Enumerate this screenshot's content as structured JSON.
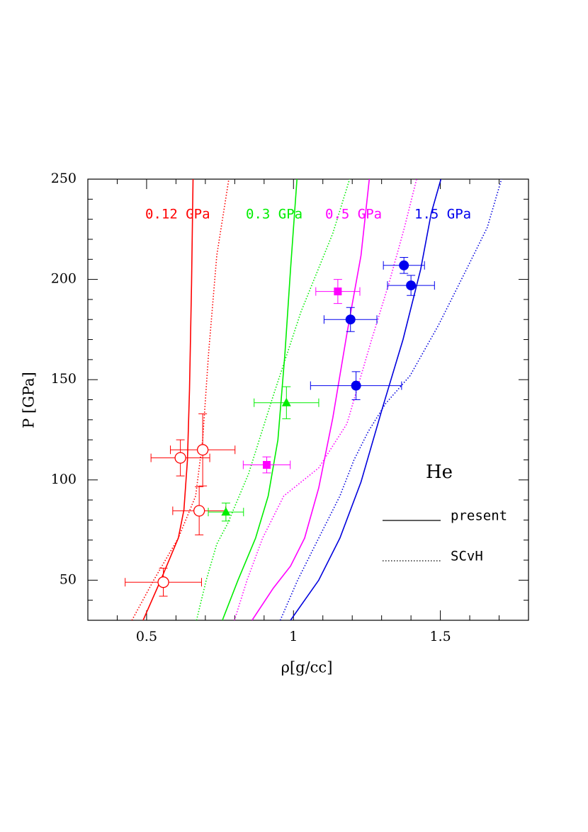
{
  "chart_data": {
    "type": "line",
    "xlabel": "ρ[g/cc]",
    "ylabel": "P [GPa]",
    "xlim": [
      0.3,
      1.8
    ],
    "ylim": [
      30,
      250
    ],
    "xticks": [
      0.5,
      1,
      1.5
    ],
    "yticks": [
      50,
      100,
      150,
      200,
      250
    ],
    "xminorticks": [
      0.4,
      0.6,
      0.7,
      0.8,
      0.9,
      1.1,
      1.2,
      1.3,
      1.4,
      1.6,
      1.7
    ],
    "yminorticks": [
      40,
      60,
      70,
      80,
      90,
      110,
      120,
      130,
      140,
      160,
      170,
      180,
      190,
      210,
      220,
      230,
      240
    ],
    "series": [
      {
        "color": "#ff0000",
        "style": "solid",
        "x": [
          0.488,
          0.548,
          0.608,
          0.627,
          0.639,
          0.646,
          0.653,
          0.658
        ],
        "values": [
          30,
          50,
          71,
          85,
          110,
          145,
          198,
          250
        ]
      },
      {
        "color": "#ff0000",
        "style": "dotted",
        "x": [
          0.45,
          0.524,
          0.608,
          0.667,
          0.691,
          0.711,
          0.739,
          0.78
        ],
        "values": [
          30,
          50,
          71,
          92,
          120,
          163,
          212,
          250
        ]
      },
      {
        "color": "#00ee00",
        "style": "solid",
        "x": [
          0.758,
          0.811,
          0.871,
          0.914,
          0.947,
          0.971,
          0.99,
          1.012
        ],
        "values": [
          30,
          50,
          71,
          92,
          120,
          163,
          205,
          250
        ]
      },
      {
        "color": "#00ee00",
        "style": "dotted",
        "x": [
          0.67,
          0.703,
          0.739,
          0.775,
          0.847,
          0.931,
          1.026,
          1.134,
          1.191
        ],
        "values": [
          30,
          50,
          68,
          78,
          103,
          142,
          184,
          223,
          250
        ]
      },
      {
        "color": "#ff00ff",
        "style": "solid",
        "x": [
          0.859,
          0.931,
          0.99,
          1.038,
          1.086,
          1.134,
          1.182,
          1.23,
          1.258
        ],
        "values": [
          30,
          46,
          57,
          71,
          96,
          131,
          173,
          212,
          250
        ]
      },
      {
        "color": "#ff00ff",
        "style": "dotted",
        "x": [
          0.799,
          0.842,
          0.895,
          0.967,
          1.086,
          1.182,
          1.266,
          1.325,
          1.378,
          1.419
        ],
        "values": [
          30,
          50,
          71,
          92,
          106,
          128,
          170,
          198,
          226,
          250
        ]
      },
      {
        "color": "#0000dd",
        "style": "solid",
        "x": [
          0.99,
          1.086,
          1.158,
          1.23,
          1.301,
          1.373,
          1.433,
          1.469,
          1.502
        ],
        "values": [
          30,
          50,
          71,
          99,
          135,
          170,
          205,
          233,
          250
        ]
      },
      {
        "color": "#0000dd",
        "style": "dotted",
        "x": [
          0.955,
          1.014,
          1.086,
          1.158,
          1.206,
          1.254,
          1.313,
          1.397,
          1.493,
          1.589,
          1.66,
          1.708
        ],
        "values": [
          30,
          50,
          71,
          92,
          110,
          124,
          138,
          152,
          177,
          205,
          226,
          250
        ]
      }
    ],
    "points": [
      {
        "color": "#ff0000",
        "marker": "open-circle",
        "x": [
          0.557,
          0.615,
          0.691,
          0.679
        ],
        "values": [
          49,
          111,
          115,
          84.6
        ],
        "xerr": [
          0.13,
          0.1,
          0.11,
          0.09
        ],
        "yerr": [
          7,
          9,
          18,
          12
        ]
      },
      {
        "color": "#00ee00",
        "marker": "triangle",
        "x": [
          0.77,
          0.976
        ],
        "values": [
          84,
          138.5
        ],
        "xerr": [
          0.06,
          0.11
        ],
        "yerr": [
          4.5,
          8
        ]
      },
      {
        "color": "#ff00ff",
        "marker": "square",
        "x": [
          0.909,
          1.151
        ],
        "values": [
          107.5,
          194
        ],
        "xerr": [
          0.08,
          0.075
        ],
        "yerr": [
          4,
          6
        ]
      },
      {
        "color": "#0000ee",
        "marker": "circle",
        "x": [
          1.376,
          1.4,
          1.194,
          1.213
        ],
        "values": [
          207,
          197,
          180,
          147
        ],
        "xerr": [
          0.07,
          0.08,
          0.09,
          0.155
        ],
        "yerr": [
          4,
          5,
          6,
          7
        ]
      }
    ],
    "annotations": [
      {
        "text": "0.12 GPa",
        "color": "#ff0000"
      },
      {
        "text": "0.3 GPa",
        "color": "#00ee00"
      },
      {
        "text": "0.5 GPa",
        "color": "#ff00ff"
      },
      {
        "text": "1.5 GPa",
        "color": "#0000ee"
      }
    ],
    "label": "He",
    "legend": [
      {
        "label": "present",
        "style": "solid"
      },
      {
        "label": "SCvH",
        "style": "dotted"
      }
    ]
  }
}
